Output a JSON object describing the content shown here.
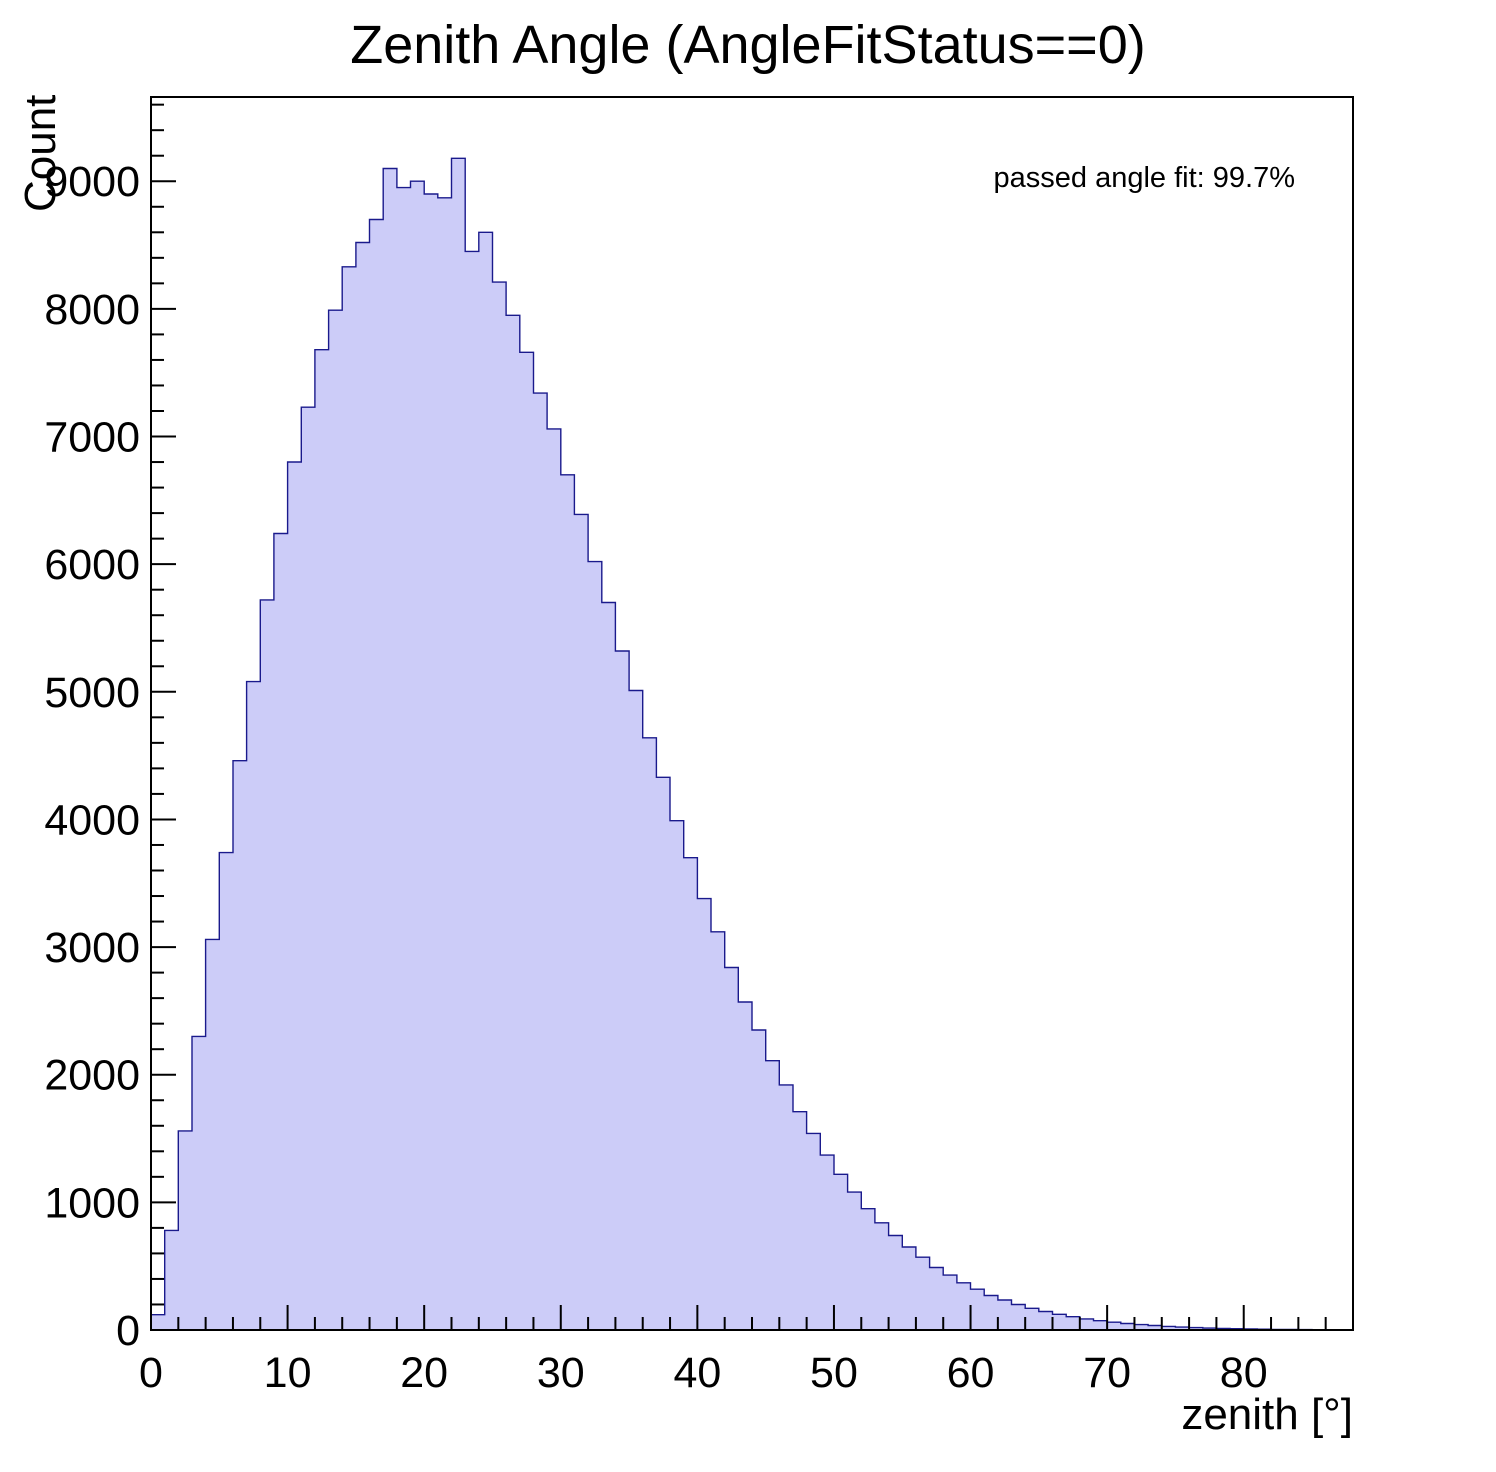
{
  "title": "Zenith Angle (AngleFitStatus==0)",
  "annotation": "passed angle fit: 99.7%",
  "colors": {
    "histogram_fill": "#ccccf8",
    "histogram_line": "#1a1a8c",
    "axis": "#000000",
    "background": "#ffffff"
  },
  "chart_data": {
    "type": "bar",
    "subtype": "histogram",
    "title": "Zenith Angle (AngleFitStatus==0)",
    "xlabel": "zenith [°]",
    "ylabel": "Count",
    "annotation": "passed angle fit: 99.7%",
    "grid": false,
    "legend_position": "none",
    "bin_start": 0,
    "bin_width": 1,
    "xlim": [
      0,
      88
    ],
    "ylim": [
      0,
      9660
    ],
    "x_major_ticks": [
      0,
      10,
      20,
      30,
      40,
      50,
      60,
      70,
      80
    ],
    "x_minor_step": 2,
    "y_major_ticks": [
      0,
      1000,
      2000,
      3000,
      4000,
      5000,
      6000,
      7000,
      8000,
      9000
    ],
    "y_minor_step": 200,
    "values": [
      120,
      780,
      1560,
      2300,
      3060,
      3740,
      4460,
      5080,
      5720,
      6240,
      6800,
      7230,
      7680,
      7990,
      8330,
      8520,
      8700,
      9100,
      8950,
      9000,
      8900,
      8870,
      9180,
      8450,
      8600,
      8210,
      7950,
      7660,
      7340,
      7060,
      6700,
      6390,
      6020,
      5700,
      5320,
      5010,
      4640,
      4330,
      3990,
      3700,
      3380,
      3120,
      2840,
      2570,
      2350,
      2110,
      1920,
      1710,
      1540,
      1370,
      1220,
      1080,
      950,
      840,
      740,
      650,
      570,
      490,
      430,
      370,
      320,
      270,
      235,
      200,
      170,
      145,
      123,
      104,
      87,
      73,
      61,
      51,
      42,
      35,
      28,
      23,
      19,
      15,
      12,
      10,
      8,
      6,
      5,
      4,
      3,
      2,
      2,
      1
    ],
    "fill_color": "#ccccf8",
    "line_color": "#1a1a8c"
  }
}
